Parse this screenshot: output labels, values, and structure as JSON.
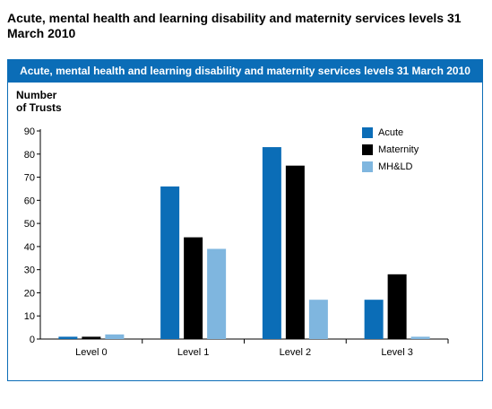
{
  "heading": "Acute, mental health and learning disability and maternity services levels 31 March 2010",
  "chart_data": {
    "type": "bar",
    "title": "Acute, mental health and learning disability and maternity services levels 31 March 2010",
    "ylabel_line1": "Number",
    "ylabel_line2": "of Trusts",
    "xlabel": "",
    "categories": [
      "Level 0",
      "Level 1",
      "Level 2",
      "Level 3"
    ],
    "ylim": [
      0,
      90
    ],
    "yticks": [
      0,
      10,
      20,
      30,
      40,
      50,
      60,
      70,
      80,
      90
    ],
    "grid": false,
    "legend_position": "top-right",
    "series": [
      {
        "name": "Acute",
        "color": "#0b6db7",
        "values": [
          1,
          66,
          83,
          17
        ]
      },
      {
        "name": "Maternity",
        "color": "#000000",
        "values": [
          1,
          44,
          75,
          28
        ]
      },
      {
        "name": "MH&LD",
        "color": "#7fb6df",
        "values": [
          2,
          39,
          17,
          1
        ]
      }
    ]
  }
}
